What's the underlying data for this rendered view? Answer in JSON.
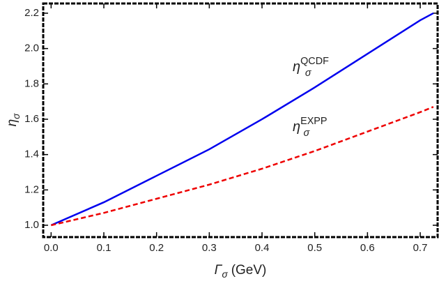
{
  "chart_data": {
    "type": "line",
    "x_label": {
      "base": "Γ",
      "sub": "σ",
      "rest": "(GeV)"
    },
    "y_label": {
      "base": "η",
      "sub": "σ"
    },
    "x": [
      0,
      0.1,
      0.2,
      0.3,
      0.4,
      0.5,
      0.6,
      0.7,
      0.725
    ],
    "series": [
      {
        "name": "QCDF",
        "color": "#0000ee",
        "dash": false,
        "values": [
          1.0,
          1.13,
          1.28,
          1.43,
          1.6,
          1.78,
          1.97,
          2.16,
          2.2
        ]
      },
      {
        "name": "EXPP",
        "color": "#ee0000",
        "dash": true,
        "values": [
          1.0,
          1.07,
          1.15,
          1.23,
          1.32,
          1.42,
          1.53,
          1.64,
          1.67
        ]
      }
    ],
    "annotations": [
      {
        "base": "η",
        "sub": "σ",
        "sup": "QCDF"
      },
      {
        "base": "η",
        "sub": "σ",
        "sup": "EXPP"
      }
    ],
    "xlim": [
      -0.015,
      0.733
    ],
    "ylim": [
      0.933,
      2.255
    ],
    "xticks": [
      {
        "value": 0,
        "label": "0.0"
      },
      0.1,
      0.2,
      0.3,
      0.4,
      0.5,
      0.6,
      0.7
    ],
    "yticks": [
      {
        "value": 1,
        "label": "1.0"
      },
      1.2,
      1.4,
      1.6,
      1.8,
      {
        "value": 2,
        "label": "2.0"
      },
      2.2
    ]
  }
}
